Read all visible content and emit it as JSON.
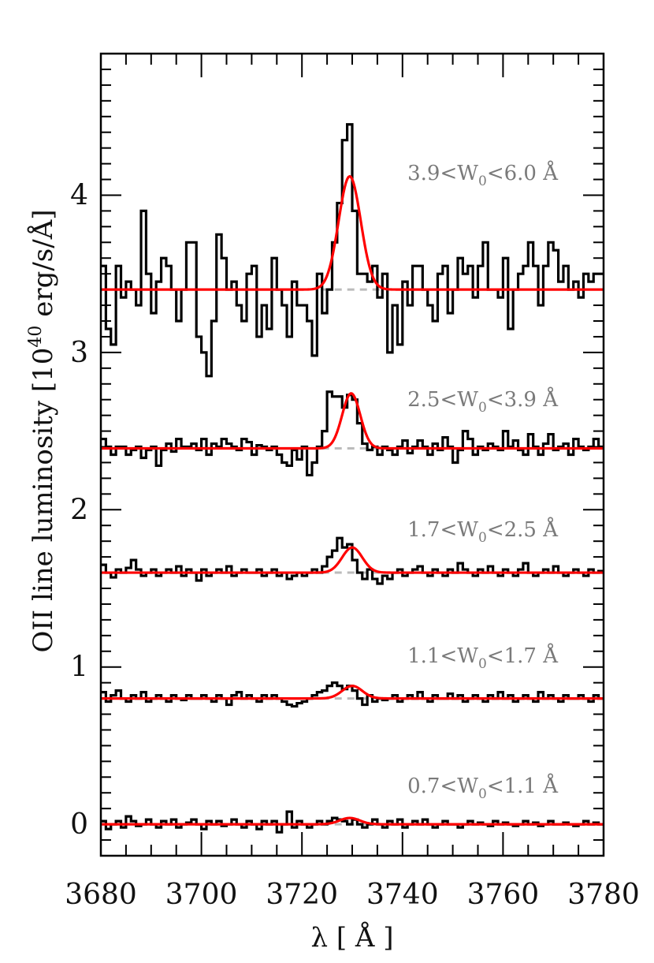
{
  "chart_data": {
    "type": "line",
    "xlabel": "λ [ Å ]",
    "ylabel": "OII line luminosity [10^40 erg/s/Å]",
    "ylabel_parts": {
      "prefix": "OII line luminosity [10",
      "exponent": "40",
      "suffix": " erg/s/Å]"
    },
    "xlim": [
      3680,
      3780
    ],
    "ylim": [
      -0.2,
      4.9
    ],
    "x_ticks": [
      3680,
      3700,
      3720,
      3740,
      3760,
      3780
    ],
    "x_tick_labels": [
      "3680",
      "3700",
      "3720",
      "3740",
      "3760",
      "3780"
    ],
    "y_ticks": [
      0,
      1,
      2,
      3,
      4
    ],
    "y_tick_labels": [
      "0",
      "1",
      "2",
      "3",
      "4"
    ],
    "grid": false,
    "legend": "none",
    "colors": {
      "spectrum": "#000000",
      "fit": "#ff0000",
      "continuum": "#bbbbbb",
      "annotation": "#7a7a7a"
    },
    "bin_width": 1,
    "bin_start": 3680,
    "panels": [
      {
        "label_prefix": "3.9<W",
        "label_sub": "0",
        "label_suffix": "<6.0 Å",
        "continuum": 3.4,
        "fit_peak": 4.12,
        "fit_center": 3729.5,
        "fit_sigma": 2.2,
        "spectrum": [
          3.55,
          3.15,
          3.05,
          3.55,
          3.35,
          3.45,
          3.4,
          3.3,
          3.9,
          3.5,
          3.25,
          3.45,
          3.6,
          3.55,
          3.4,
          3.2,
          3.4,
          3.7,
          3.7,
          3.1,
          3.0,
          2.85,
          3.2,
          3.75,
          3.6,
          3.4,
          3.45,
          3.3,
          3.2,
          3.5,
          3.55,
          3.1,
          3.3,
          3.15,
          3.6,
          3.4,
          3.3,
          3.1,
          3.45,
          3.3,
          3.3,
          3.2,
          2.98,
          3.5,
          3.25,
          3.4,
          3.7,
          3.95,
          4.35,
          4.45,
          3.9,
          3.5,
          3.5,
          3.45,
          3.55,
          3.35,
          3.5,
          3.0,
          3.3,
          3.05,
          3.45,
          3.3,
          3.55,
          3.55,
          3.4,
          3.3,
          3.2,
          3.5,
          3.55,
          3.25,
          3.4,
          3.6,
          3.5,
          3.55,
          3.35,
          3.55,
          3.7,
          3.4,
          3.4,
          3.35,
          3.6,
          3.15,
          3.4,
          3.5,
          3.55,
          3.7,
          3.55,
          3.3,
          3.55,
          3.7,
          3.65,
          3.45,
          3.55,
          3.4,
          3.45,
          3.35,
          3.5,
          3.45,
          3.5,
          3.5
        ]
      },
      {
        "label_prefix": "2.5<W",
        "label_sub": "0",
        "label_suffix": "<3.9 Å",
        "continuum": 2.39,
        "fit_peak": 2.74,
        "fit_center": 3729.8,
        "fit_sigma": 1.8,
        "spectrum": [
          2.45,
          2.4,
          2.35,
          2.4,
          2.4,
          2.35,
          2.38,
          2.4,
          2.33,
          2.38,
          2.4,
          2.28,
          2.38,
          2.42,
          2.37,
          2.45,
          2.4,
          2.4,
          2.42,
          2.38,
          2.45,
          2.35,
          2.42,
          2.4,
          2.45,
          2.42,
          2.4,
          2.38,
          2.45,
          2.43,
          2.35,
          2.41,
          2.4,
          2.38,
          2.4,
          2.35,
          2.3,
          2.28,
          2.38,
          2.32,
          2.4,
          2.22,
          2.3,
          2.4,
          2.5,
          2.75,
          2.72,
          2.72,
          2.65,
          2.73,
          2.7,
          2.55,
          2.42,
          2.38,
          2.4,
          2.35,
          2.4,
          2.38,
          2.35,
          2.4,
          2.44,
          2.36,
          2.4,
          2.44,
          2.4,
          2.35,
          2.42,
          2.38,
          2.46,
          2.4,
          2.3,
          2.38,
          2.5,
          2.45,
          2.35,
          2.4,
          2.38,
          2.42,
          2.4,
          2.38,
          2.5,
          2.4,
          2.44,
          2.38,
          2.35,
          2.48,
          2.4,
          2.35,
          2.42,
          2.48,
          2.38,
          2.4,
          2.42,
          2.35,
          2.45,
          2.4,
          2.38,
          2.4,
          2.45,
          2.4
        ]
      },
      {
        "label_prefix": "1.7<W",
        "label_sub": "0",
        "label_suffix": "<2.5 Å",
        "continuum": 1.6,
        "fit_peak": 1.76,
        "fit_center": 3730.0,
        "fit_sigma": 2.0,
        "spectrum": [
          1.65,
          1.6,
          1.57,
          1.62,
          1.6,
          1.63,
          1.68,
          1.62,
          1.58,
          1.6,
          1.62,
          1.58,
          1.6,
          1.62,
          1.6,
          1.64,
          1.58,
          1.62,
          1.6,
          1.55,
          1.62,
          1.58,
          1.6,
          1.62,
          1.6,
          1.64,
          1.58,
          1.6,
          1.62,
          1.6,
          1.6,
          1.62,
          1.58,
          1.6,
          1.62,
          1.58,
          1.6,
          1.56,
          1.58,
          1.6,
          1.58,
          1.6,
          1.62,
          1.6,
          1.64,
          1.7,
          1.74,
          1.82,
          1.76,
          1.78,
          1.68,
          1.6,
          1.56,
          1.62,
          1.56,
          1.53,
          1.58,
          1.56,
          1.6,
          1.62,
          1.58,
          1.6,
          1.62,
          1.64,
          1.6,
          1.58,
          1.62,
          1.6,
          1.58,
          1.62,
          1.6,
          1.66,
          1.62,
          1.6,
          1.58,
          1.62,
          1.6,
          1.64,
          1.6,
          1.58,
          1.62,
          1.6,
          1.58,
          1.62,
          1.66,
          1.6,
          1.58,
          1.6,
          1.62,
          1.6,
          1.64,
          1.6,
          1.58,
          1.6,
          1.62,
          1.6,
          1.58,
          1.62,
          1.6,
          1.61
        ]
      },
      {
        "label_prefix": "1.1<W",
        "label_sub": "0",
        "label_suffix": "<1.7 Å",
        "continuum": 0.8,
        "fit_peak": 0.88,
        "fit_center": 3730.0,
        "fit_sigma": 2.0,
        "spectrum": [
          0.84,
          0.78,
          0.82,
          0.85,
          0.8,
          0.78,
          0.82,
          0.8,
          0.84,
          0.78,
          0.8,
          0.82,
          0.8,
          0.78,
          0.82,
          0.8,
          0.79,
          0.82,
          0.8,
          0.8,
          0.82,
          0.8,
          0.78,
          0.82,
          0.8,
          0.76,
          0.82,
          0.84,
          0.8,
          0.82,
          0.8,
          0.78,
          0.82,
          0.8,
          0.82,
          0.8,
          0.78,
          0.76,
          0.75,
          0.77,
          0.78,
          0.8,
          0.82,
          0.84,
          0.85,
          0.88,
          0.9,
          0.88,
          0.86,
          0.88,
          0.85,
          0.8,
          0.76,
          0.82,
          0.78,
          0.8,
          0.79,
          0.8,
          0.82,
          0.78,
          0.8,
          0.82,
          0.8,
          0.84,
          0.8,
          0.78,
          0.82,
          0.8,
          0.8,
          0.83,
          0.8,
          0.82,
          0.78,
          0.8,
          0.82,
          0.8,
          0.78,
          0.82,
          0.8,
          0.84,
          0.8,
          0.82,
          0.78,
          0.8,
          0.82,
          0.8,
          0.78,
          0.84,
          0.8,
          0.82,
          0.8,
          0.78,
          0.82,
          0.8,
          0.8,
          0.82,
          0.8,
          0.78,
          0.82,
          0.8
        ]
      },
      {
        "label_prefix": "0.7<W",
        "label_sub": "0",
        "label_suffix": "<1.1 Å",
        "continuum": 0.0,
        "fit_peak": 0.04,
        "fit_center": 3729.5,
        "fit_sigma": 2.0,
        "spectrum": [
          0.02,
          -0.03,
          0.0,
          0.02,
          -0.02,
          0.05,
          0.02,
          -0.01,
          0.0,
          0.03,
          0.0,
          -0.02,
          0.02,
          0.0,
          0.03,
          -0.02,
          0.0,
          0.01,
          0.03,
          0.0,
          -0.03,
          0.02,
          0.0,
          0.02,
          -0.01,
          0.0,
          0.03,
          0.0,
          -0.02,
          0.02,
          0.0,
          -0.03,
          0.02,
          0.0,
          0.02,
          -0.05,
          0.0,
          0.08,
          -0.02,
          0.02,
          0.0,
          -0.02,
          0.0,
          0.02,
          0.0,
          0.02,
          0.04,
          0.03,
          0.02,
          0.0,
          0.03,
          0.0,
          -0.02,
          0.0,
          0.03,
          0.0,
          -0.02,
          0.02,
          0.0,
          0.03,
          -0.02,
          0.0,
          0.02,
          0.0,
          0.03,
          0.0,
          -0.02,
          0.0,
          0.02,
          0.0,
          0.0,
          -0.02,
          0.0,
          0.02,
          0.0,
          0.01,
          0.0,
          -0.01,
          0.02,
          0.0,
          0.01,
          0.0,
          -0.01,
          0.0,
          0.02,
          0.0,
          0.01,
          -0.01,
          0.0,
          0.02,
          0.0,
          0.0,
          0.01,
          0.0,
          -0.01,
          0.0,
          0.02,
          0.0,
          0.01,
          0.0
        ]
      }
    ]
  }
}
